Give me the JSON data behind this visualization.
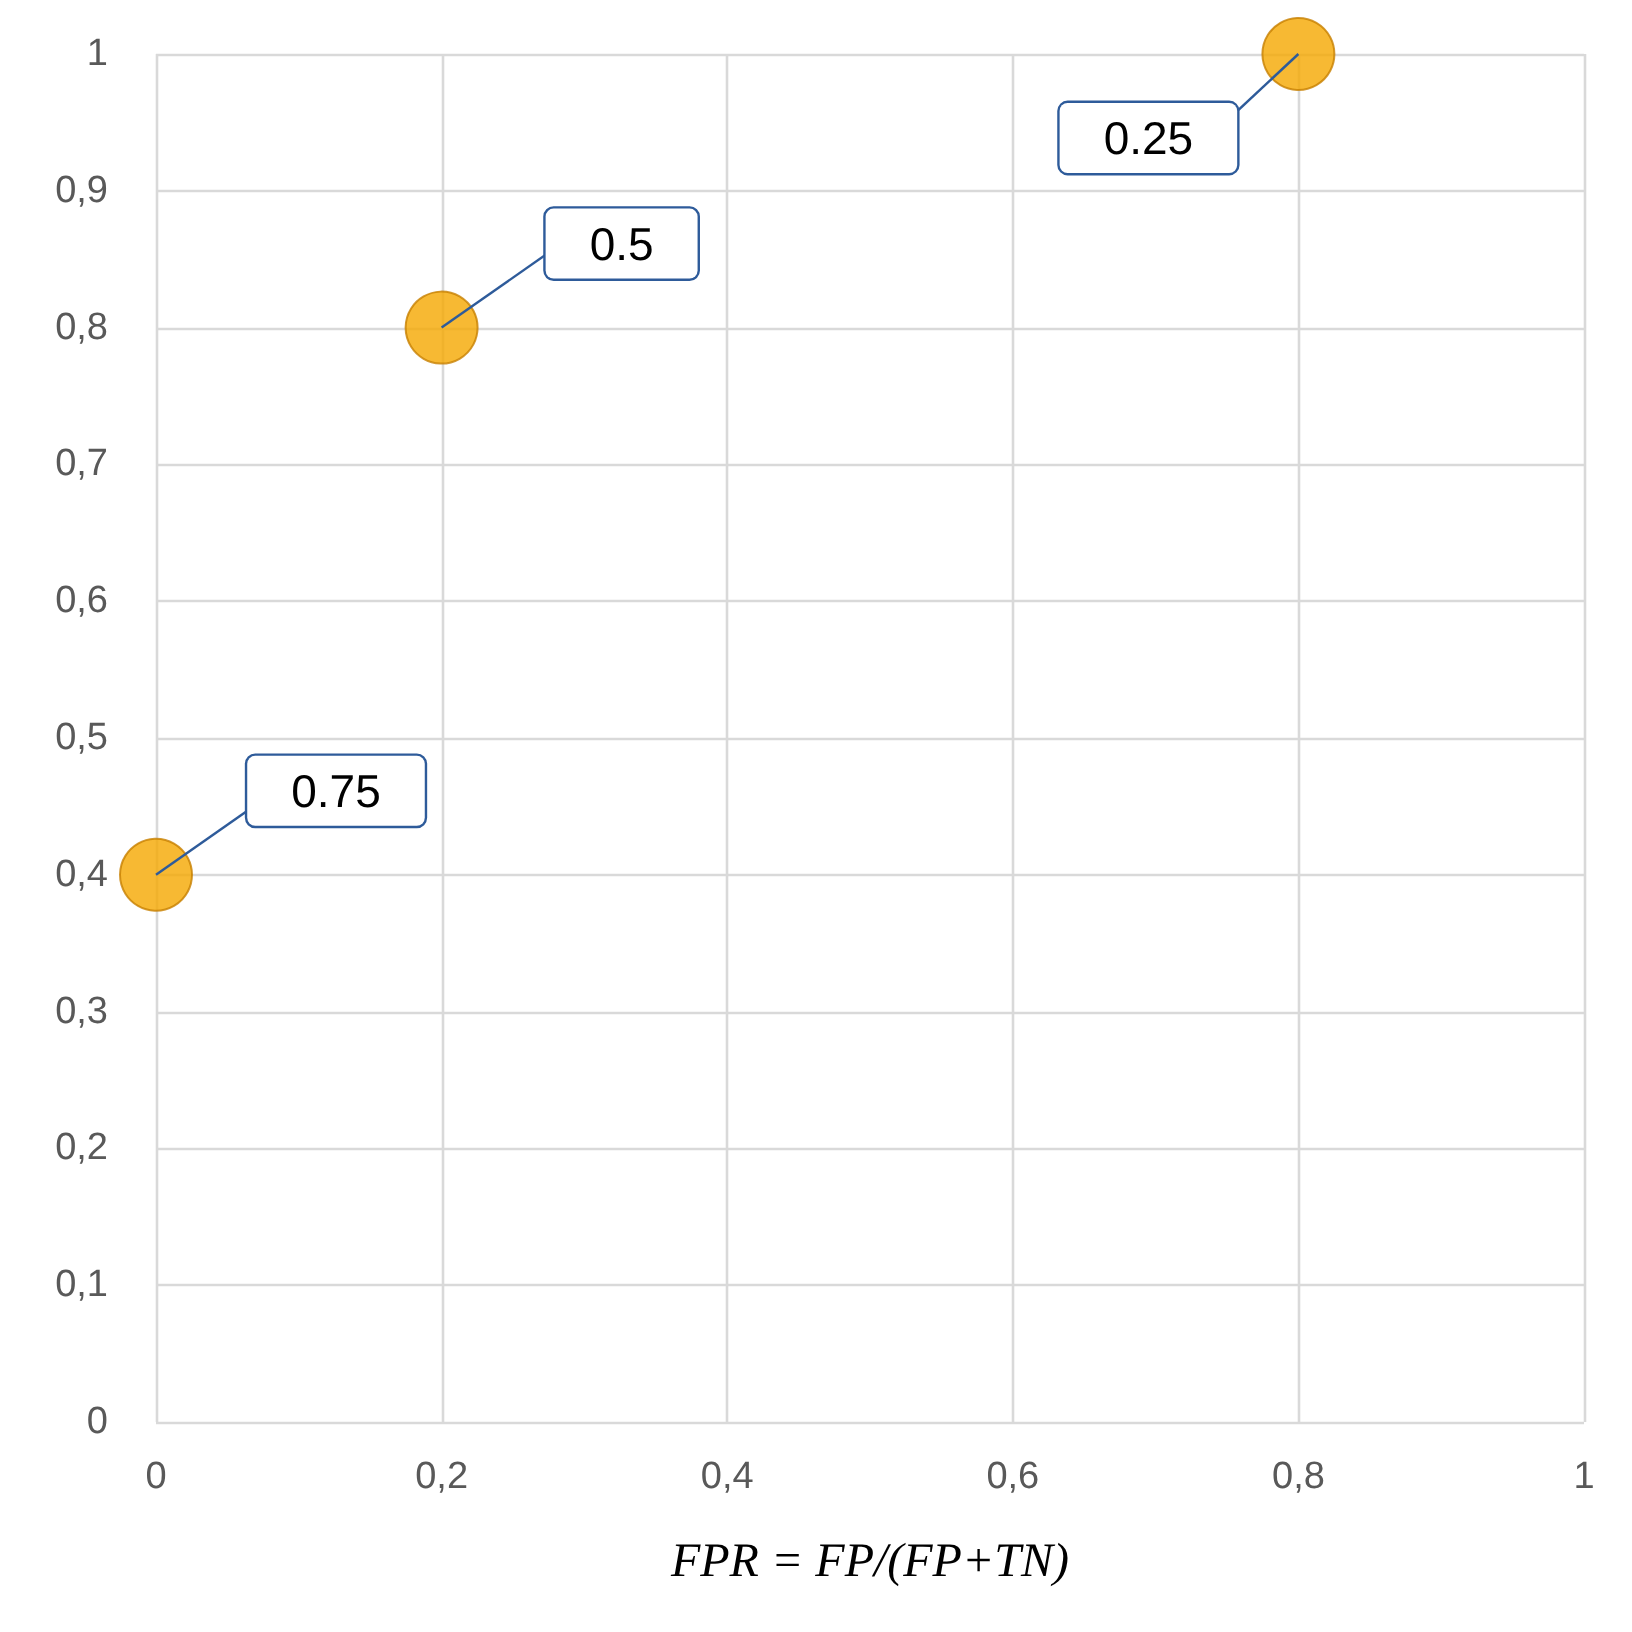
{
  "chart_data": {
    "type": "scatter",
    "xlabel": "FPR = FP/(FP+TN)",
    "x": [
      0,
      0.2,
      0.8
    ],
    "series": [
      {
        "color": "#f5a700",
        "values": [
          0.4,
          0.8,
          1
        ]
      }
    ],
    "xlim": [
      0,
      1
    ],
    "ylim": [
      0,
      1
    ],
    "xticks": [
      0,
      {
        "value": 0.2,
        "label": "0,2"
      },
      {
        "value": 0.4,
        "label": "0,4"
      },
      {
        "value": 0.6,
        "label": "0,6"
      },
      {
        "value": 0.8,
        "label": "0,8"
      },
      1
    ],
    "yticks": [
      0,
      {
        "value": 0.1,
        "label": "0,1"
      },
      {
        "value": 0.2,
        "label": "0,2"
      },
      {
        "value": 0.3,
        "label": "0,3"
      },
      {
        "value": 0.4,
        "label": "0,4"
      },
      {
        "value": 0.5,
        "label": "0,5"
      },
      {
        "value": 0.6,
        "label": "0,6"
      },
      {
        "value": 0.7,
        "label": "0,7"
      },
      {
        "value": 0.8,
        "label": "0,8"
      },
      {
        "value": 0.9,
        "label": "0,9"
      },
      1
    ],
    "annotations": [
      {
        "text": "0.75",
        "x": 0,
        "y": 0.4
      },
      {
        "text": "0.5",
        "x": 0.2,
        "y": 0.8
      },
      {
        "text": "0.25",
        "x": 0.8,
        "y": 1
      }
    ],
    "grid": true,
    "marker": "circle"
  }
}
